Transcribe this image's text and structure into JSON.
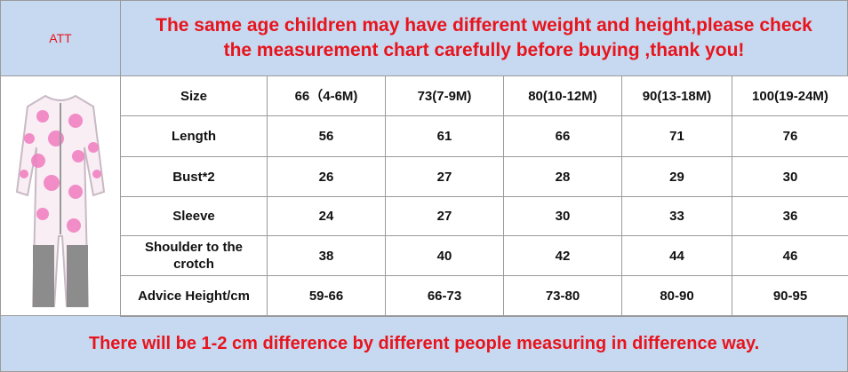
{
  "header": {
    "label": "ATT",
    "notice": [
      "The same age children may have different weight and height,please check",
      "the measurement chart carefully before buying ,thank you!"
    ]
  },
  "table": {
    "header": [
      "Size",
      "66（4-6M)",
      "73(7-9M)",
      "80(10-12M)",
      "90(13-18M)",
      "100(19-24M)"
    ],
    "rows": [
      [
        "Length",
        56,
        61,
        66,
        71,
        76
      ],
      [
        "Bust*2",
        26,
        27,
        28,
        29,
        30
      ],
      [
        "Sleeve",
        24,
        27,
        30,
        33,
        36
      ],
      [
        "Shoulder to the crotch",
        38,
        40,
        42,
        44,
        46
      ],
      [
        "Advice Height/cm",
        "59-66",
        "66-73",
        "73-80",
        "80-90",
        "90-95"
      ]
    ]
  },
  "footer": {
    "note": "There will be 1-2 cm difference by different people measuring in difference way."
  }
}
